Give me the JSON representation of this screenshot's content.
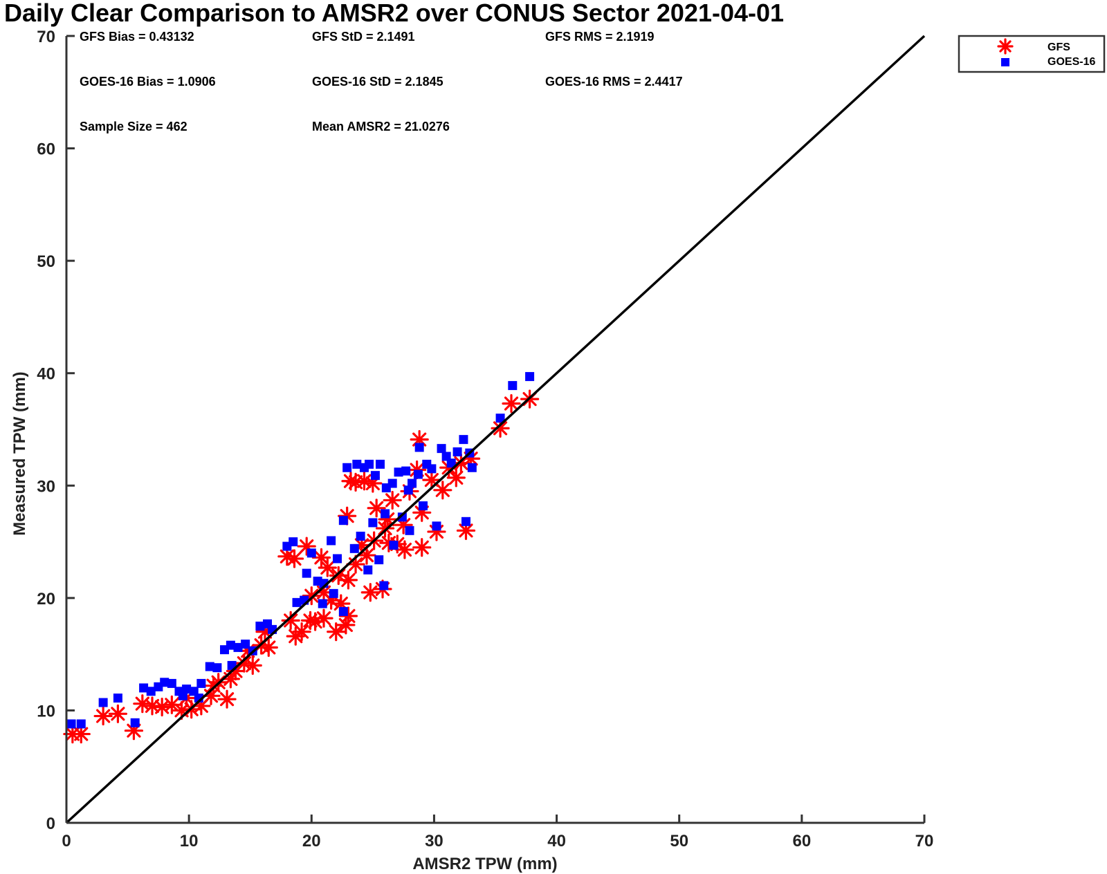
{
  "chart_data": {
    "type": "scatter",
    "title": "Daily Clear Comparison to AMSR2 over CONUS Sector 2021-04-01",
    "xlabel": "AMSR2 TPW (mm)",
    "ylabel": "Measured TPW (mm)",
    "xlim": [
      0,
      70
    ],
    "ylim": [
      0,
      70
    ],
    "xticks": [
      "0",
      "10",
      "20",
      "30",
      "40",
      "50",
      "60",
      "70"
    ],
    "yticks": [
      "0",
      "10",
      "20",
      "30",
      "40",
      "50",
      "60",
      "70"
    ],
    "reference_line": "1:1",
    "grid": false,
    "legend_position": "outside top-right",
    "stats": [
      [
        "GFS Bias = 0.43132",
        "GFS StD = 2.1491",
        "GFS RMS = 2.1919"
      ],
      [
        "GOES-16 Bias = 1.0906",
        "GOES-16 StD = 2.1845",
        "GOES-16 RMS = 2.4417"
      ],
      [
        "Sample Size = 462",
        "Mean AMSR2 = 21.0276"
      ]
    ],
    "series": [
      {
        "name": "GFS",
        "marker": "asterisk",
        "color": "#ff0000",
        "points": [
          [
            0.5,
            7.9
          ],
          [
            1.2,
            7.9
          ],
          [
            3.0,
            9.5
          ],
          [
            4.2,
            9.7
          ],
          [
            5.5,
            8.2
          ],
          [
            6.2,
            10.6
          ],
          [
            7.0,
            10.4
          ],
          [
            7.8,
            10.3
          ],
          [
            8.6,
            10.5
          ],
          [
            9.4,
            10.0
          ],
          [
            10.2,
            10.1
          ],
          [
            11.0,
            10.4
          ],
          [
            11.8,
            11.3
          ],
          [
            12.4,
            12.5
          ],
          [
            13.1,
            11.0
          ],
          [
            13.4,
            12.8
          ],
          [
            13.8,
            13.5
          ],
          [
            14.5,
            14.2
          ],
          [
            15.2,
            14.0
          ],
          [
            15.9,
            15.8
          ],
          [
            16.5,
            15.6
          ],
          [
            16.2,
            17.0
          ],
          [
            18.0,
            23.7
          ],
          [
            18.6,
            23.5
          ],
          [
            18.7,
            16.6
          ],
          [
            19.2,
            17.0
          ],
          [
            19.6,
            24.6
          ],
          [
            19.9,
            18.0
          ],
          [
            20.3,
            17.9
          ],
          [
            20.8,
            23.6
          ],
          [
            21.0,
            18.2
          ],
          [
            21.6,
            19.8
          ],
          [
            22.0,
            17.0
          ],
          [
            22.4,
            19.5
          ],
          [
            22.8,
            17.6
          ],
          [
            23.0,
            18.4
          ],
          [
            23.0,
            21.6
          ],
          [
            22.9,
            27.3
          ],
          [
            23.2,
            30.4
          ],
          [
            23.6,
            30.3
          ],
          [
            24.3,
            30.4
          ],
          [
            24.5,
            23.8
          ],
          [
            24.8,
            20.5
          ],
          [
            25.0,
            30.2
          ],
          [
            25.3,
            28.0
          ],
          [
            25.8,
            20.8
          ],
          [
            26.2,
            27.0
          ],
          [
            26.6,
            28.7
          ],
          [
            27.0,
            24.8
          ],
          [
            27.6,
            24.3
          ],
          [
            28.0,
            29.5
          ],
          [
            28.6,
            31.4
          ],
          [
            28.8,
            34.1
          ],
          [
            29.0,
            24.5
          ],
          [
            29.0,
            27.6
          ],
          [
            29.8,
            30.5
          ],
          [
            30.2,
            25.9
          ],
          [
            30.7,
            29.6
          ],
          [
            31.2,
            31.6
          ],
          [
            31.8,
            30.7
          ],
          [
            32.2,
            32.0
          ],
          [
            32.6,
            26.0
          ],
          [
            33.0,
            32.4
          ],
          [
            35.4,
            35.1
          ],
          [
            36.3,
            37.3
          ],
          [
            37.8,
            37.7
          ],
          [
            21.3,
            22.7
          ],
          [
            26.0,
            26.2
          ],
          [
            27.5,
            26.5
          ],
          [
            24.1,
            24.7
          ],
          [
            25.1,
            25.1
          ],
          [
            26.3,
            24.9
          ],
          [
            22.2,
            22.0
          ],
          [
            21.0,
            20.5
          ],
          [
            20.0,
            20.2
          ],
          [
            12.0,
            12.2
          ],
          [
            9.8,
            11.1
          ],
          [
            14.8,
            15.3
          ],
          [
            18.3,
            18.0
          ],
          [
            23.6,
            23.0
          ]
        ]
      },
      {
        "name": "GOES-16",
        "marker": "square",
        "color": "#0000ff",
        "points": [
          [
            0.4,
            8.8
          ],
          [
            1.2,
            8.8
          ],
          [
            3.0,
            10.7
          ],
          [
            4.2,
            11.1
          ],
          [
            5.6,
            8.9
          ],
          [
            6.3,
            12.0
          ],
          [
            6.9,
            11.7
          ],
          [
            7.5,
            12.1
          ],
          [
            8.0,
            12.5
          ],
          [
            8.6,
            12.4
          ],
          [
            9.2,
            11.7
          ],
          [
            9.8,
            11.9
          ],
          [
            10.4,
            11.7
          ],
          [
            11.0,
            12.4
          ],
          [
            11.7,
            13.9
          ],
          [
            12.3,
            13.8
          ],
          [
            12.9,
            15.4
          ],
          [
            13.4,
            15.8
          ],
          [
            14.0,
            15.6
          ],
          [
            14.6,
            15.9
          ],
          [
            15.2,
            15.3
          ],
          [
            15.8,
            17.5
          ],
          [
            16.4,
            17.7
          ],
          [
            16.8,
            17.2
          ],
          [
            18.0,
            24.6
          ],
          [
            18.5,
            25.0
          ],
          [
            18.8,
            19.6
          ],
          [
            19.4,
            19.8
          ],
          [
            19.6,
            22.2
          ],
          [
            20.0,
            24.0
          ],
          [
            20.5,
            21.5
          ],
          [
            21.0,
            21.3
          ],
          [
            21.6,
            25.1
          ],
          [
            22.1,
            23.5
          ],
          [
            22.6,
            26.9
          ],
          [
            22.9,
            31.6
          ],
          [
            23.7,
            31.9
          ],
          [
            24.3,
            31.6
          ],
          [
            24.7,
            31.9
          ],
          [
            25.2,
            30.9
          ],
          [
            25.6,
            31.9
          ],
          [
            26.1,
            29.8
          ],
          [
            26.6,
            30.2
          ],
          [
            27.1,
            31.2
          ],
          [
            27.7,
            31.3
          ],
          [
            28.2,
            30.2
          ],
          [
            28.7,
            31.0
          ],
          [
            28.8,
            33.4
          ],
          [
            29.1,
            28.2
          ],
          [
            29.4,
            31.9
          ],
          [
            29.8,
            31.5
          ],
          [
            30.2,
            26.4
          ],
          [
            30.6,
            33.3
          ],
          [
            31.0,
            32.6
          ],
          [
            31.4,
            32.0
          ],
          [
            31.9,
            33.0
          ],
          [
            32.4,
            34.1
          ],
          [
            32.6,
            26.8
          ],
          [
            32.9,
            32.9
          ],
          [
            33.1,
            31.6
          ],
          [
            35.4,
            36.0
          ],
          [
            36.4,
            38.9
          ],
          [
            37.8,
            39.7
          ],
          [
            24.0,
            25.5
          ],
          [
            25.0,
            26.7
          ],
          [
            26.0,
            27.5
          ],
          [
            27.4,
            27.2
          ],
          [
            25.5,
            23.4
          ],
          [
            26.7,
            24.7
          ],
          [
            24.6,
            22.5
          ],
          [
            23.5,
            24.4
          ],
          [
            21.8,
            20.4
          ],
          [
            20.9,
            19.5
          ],
          [
            25.9,
            21.1
          ],
          [
            22.6,
            18.8
          ],
          [
            9.5,
            11.3
          ],
          [
            10.8,
            11.1
          ],
          [
            13.5,
            14.0
          ],
          [
            28.0,
            26.0
          ],
          [
            27.9,
            29.6
          ]
        ]
      }
    ]
  }
}
